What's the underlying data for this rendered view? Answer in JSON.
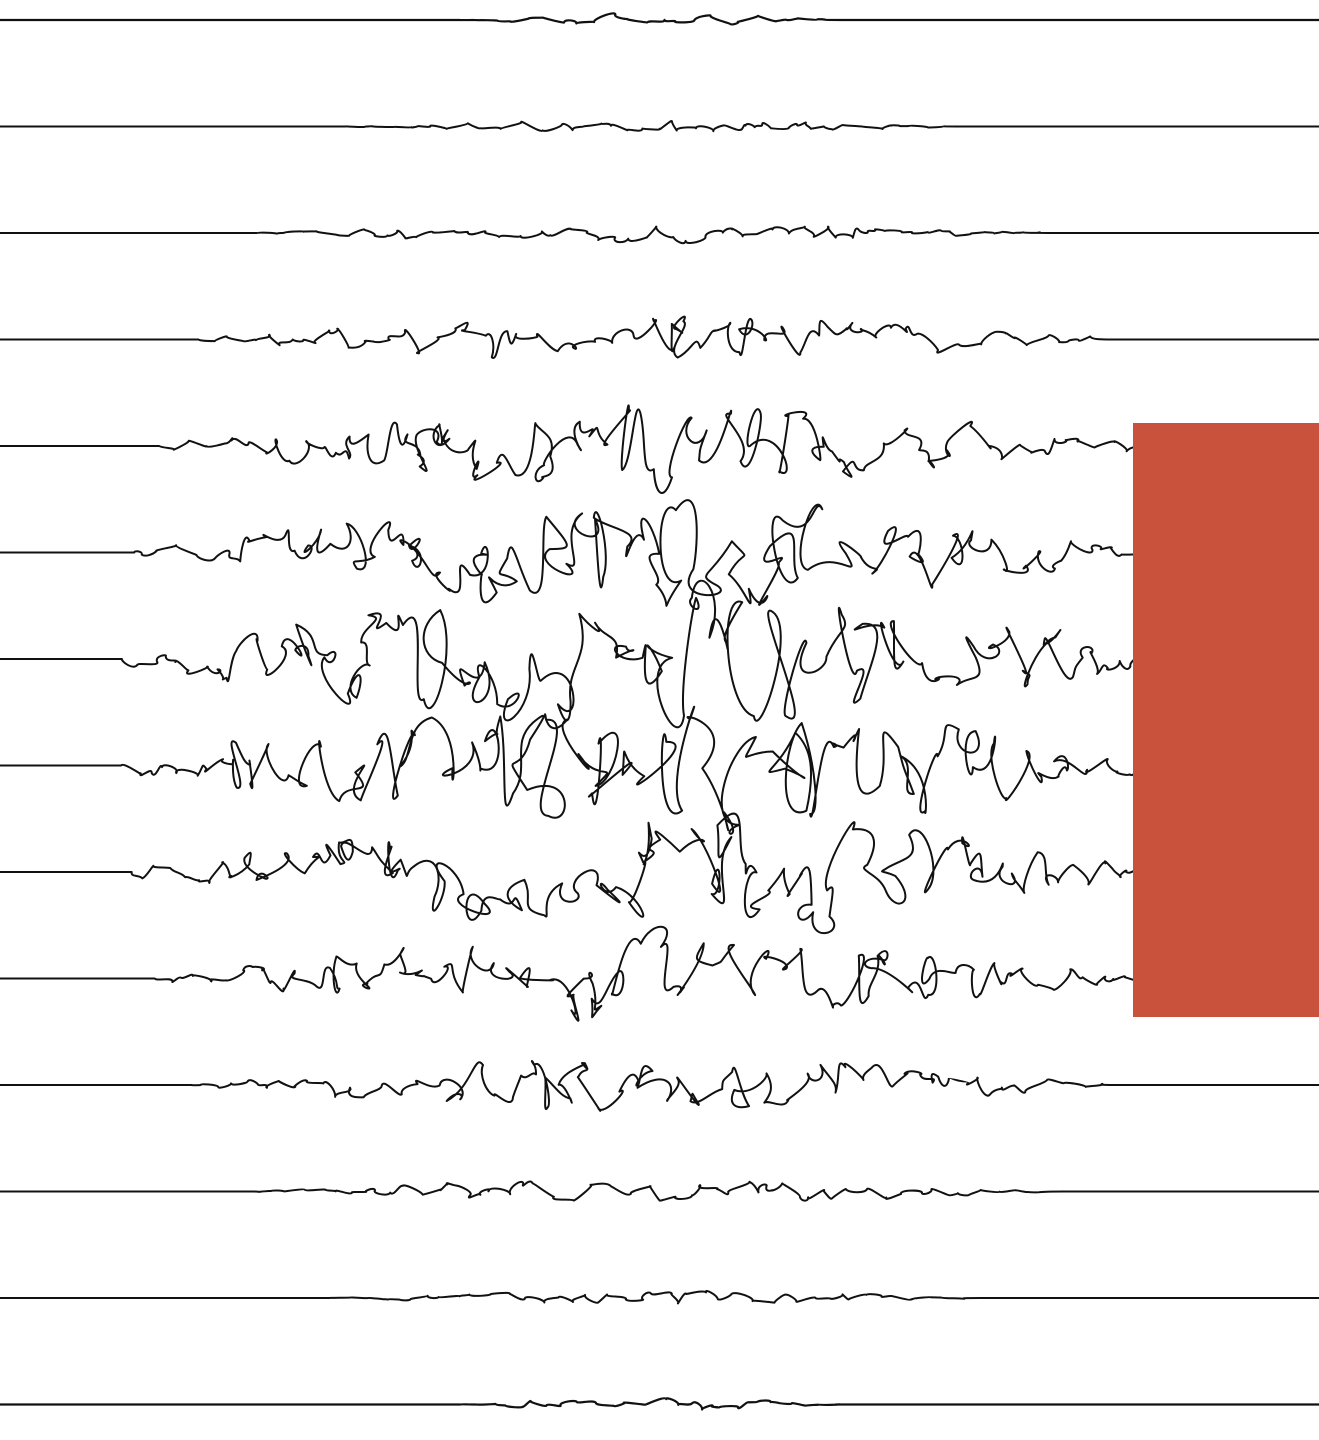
{
  "artwork": {
    "description_icon": "scribble-lines-illustration",
    "line_color": "#111111",
    "background_color": "#ffffff",
    "line_count": 14
  },
  "accent_panel": {
    "color": "#c8523b"
  }
}
